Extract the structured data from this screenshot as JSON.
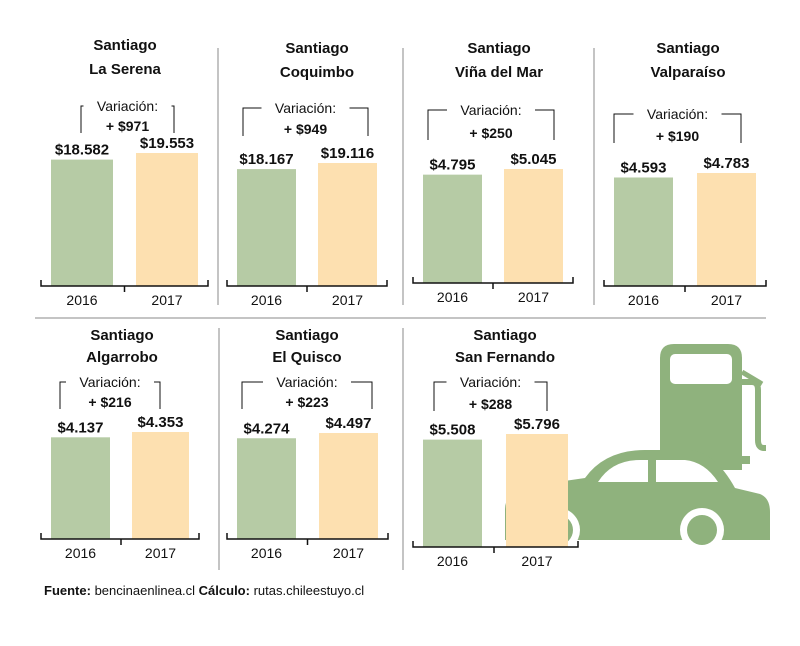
{
  "colors": {
    "y2016": "#b6cba5",
    "y2017": "#fde0b0",
    "car": "#8fb27d",
    "divider": "#888888"
  },
  "icons": [
    "fuel-pump-icon",
    "car-icon"
  ],
  "chart_data": [
    {
      "type": "bar",
      "title": [
        "Santiago",
        "La Serena"
      ],
      "categories": [
        "2016",
        "2017"
      ],
      "values": [
        18582,
        19553
      ],
      "value_labels": [
        "$18.582",
        "$19.553"
      ],
      "variation_label": "Variación:",
      "variation": "+ $971"
    },
    {
      "type": "bar",
      "title": [
        "Santiago",
        "Coquimbo"
      ],
      "categories": [
        "2016",
        "2017"
      ],
      "values": [
        18167,
        19116
      ],
      "value_labels": [
        "$18.167",
        "$19.116"
      ],
      "variation_label": "Variación:",
      "variation": "+ $949"
    },
    {
      "type": "bar",
      "title": [
        "Santiago",
        "Viña del Mar"
      ],
      "categories": [
        "2016",
        "2017"
      ],
      "values": [
        4795,
        5045
      ],
      "value_labels": [
        "$4.795",
        "$5.045"
      ],
      "variation_label": "Variación:",
      "variation": "+ $250"
    },
    {
      "type": "bar",
      "title": [
        "Santiago",
        "Valparaíso"
      ],
      "categories": [
        "2016",
        "2017"
      ],
      "values": [
        4593,
        4783
      ],
      "value_labels": [
        "$4.593",
        "$4.783"
      ],
      "variation_label": "Variación:",
      "variation": "+ $190"
    },
    {
      "type": "bar",
      "title": [
        "Santiago",
        "Algarrobo"
      ],
      "categories": [
        "2016",
        "2017"
      ],
      "values": [
        4137,
        4353
      ],
      "value_labels": [
        "$4.137",
        "$4.353"
      ],
      "variation_label": "Variación:",
      "variation": "+ $216"
    },
    {
      "type": "bar",
      "title": [
        "Santiago",
        "El Quisco"
      ],
      "categories": [
        "2016",
        "2017"
      ],
      "values": [
        4274,
        4497
      ],
      "value_labels": [
        "$4.274",
        "$4.497"
      ],
      "variation_label": "Variación:",
      "variation": "+ $223"
    },
    {
      "type": "bar",
      "title": [
        "Santiago",
        "San Fernando"
      ],
      "categories": [
        "2016",
        "2017"
      ],
      "values": [
        5508,
        5796
      ],
      "value_labels": [
        "$5.508",
        "$5.796"
      ],
      "variation_label": "Variación:",
      "variation": "+ $288"
    }
  ],
  "source": {
    "label1": "Fuente:",
    "text1": "bencinaenlinea.cl",
    "label2": "Cálculo:",
    "text2": "rutas.chileestuyo.cl"
  }
}
